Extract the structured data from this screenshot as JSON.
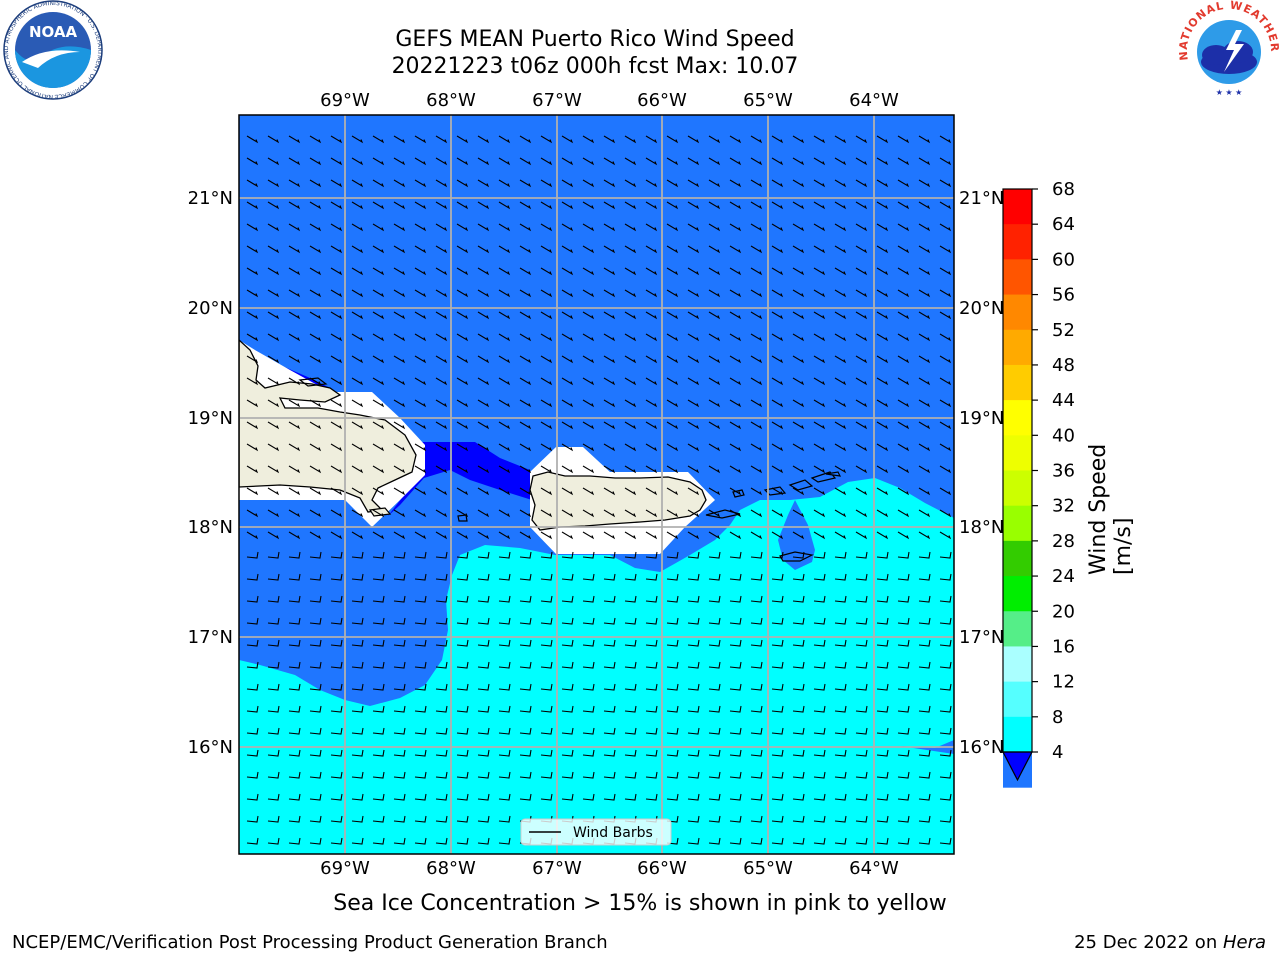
{
  "header": {
    "title_line1": "GEFS MEAN Puerto Rico Wind Speed",
    "title_line2": "20221223 t06z 000h fcst   Max: 10.07"
  },
  "map": {
    "lon_labels": [
      "69°W",
      "68°W",
      "67°W",
      "66°W",
      "65°W",
      "64°W"
    ],
    "lat_labels": [
      "21°N",
      "20°N",
      "19°N",
      "18°N",
      "17°N",
      "16°N"
    ],
    "legend_label": "Wind Barbs",
    "colors": {
      "land": "#efeedd",
      "wind_4_8": "#1f76ff",
      "wind_8_12": "#00ffff",
      "wind_lt_4": "#0000ff",
      "gridline": "#b0b0b0"
    }
  },
  "colorbar": {
    "label": "Wind Speed [m/s]",
    "ticks": [
      "68",
      "64",
      "60",
      "56",
      "52",
      "48",
      "44",
      "40",
      "36",
      "32",
      "28",
      "24",
      "20",
      "16",
      "12",
      "8",
      "4"
    ],
    "colors": [
      "#ff0000",
      "#ff2200",
      "#ff5500",
      "#ff8800",
      "#ffaa00",
      "#ffcc00",
      "#ffff00",
      "#eeff00",
      "#ccff00",
      "#99ff00",
      "#33cc00",
      "#00ee00",
      "#55ee88",
      "#aaffff",
      "#55ffff",
      "#00ffff",
      "#1f76ff"
    ],
    "under_color": "#0000ff"
  },
  "logos": {
    "noaa_text": "NOAA",
    "noaa_ring_text": "NATIONAL OCEANIC AND ATMOSPHERIC ADMINISTRATION · U.S. DEPARTMENT OF COMMERCE",
    "nws_ring_text": "NATIONAL WEATHER SERVICE"
  },
  "footer": {
    "note": "Sea Ice Concentration > 15% is shown in pink to yellow",
    "left": "NCEP/EMC/Verification Post Processing Product Generation Branch",
    "right_date": "25 Dec 2022 on ",
    "right_host": "Hera"
  }
}
